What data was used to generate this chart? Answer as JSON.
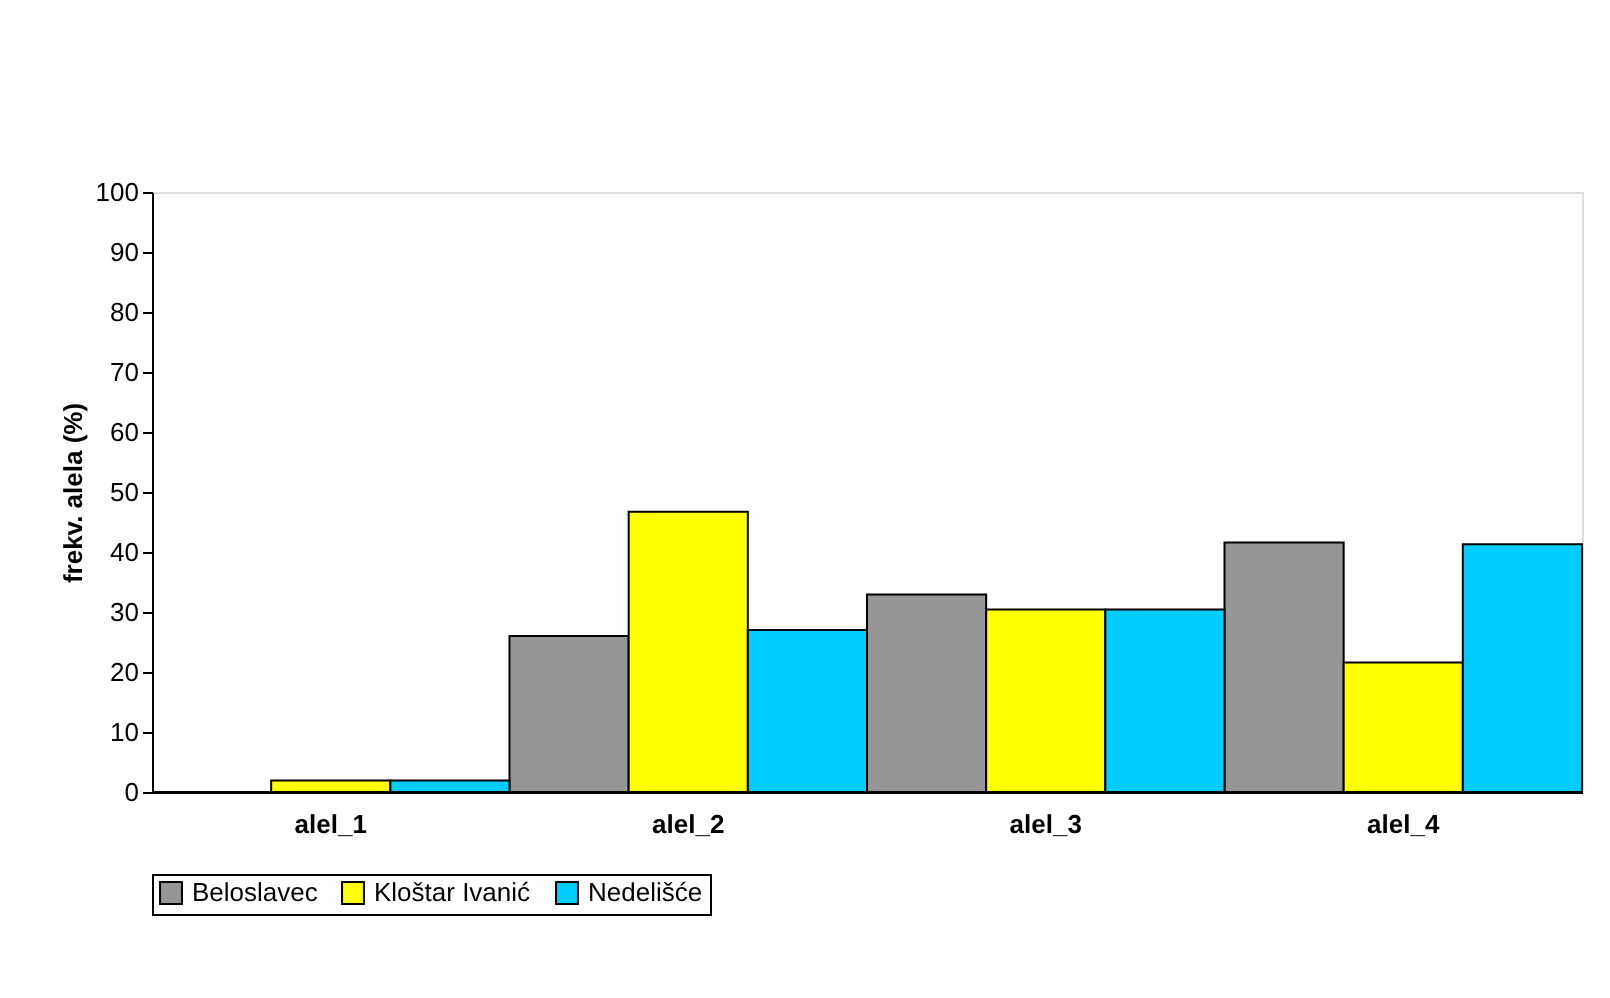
{
  "chart_data": {
    "type": "bar",
    "ylabel": "frekv. alela (%)",
    "categories": [
      "alel_1",
      "alel_2",
      "alel_3",
      "alel_4"
    ],
    "series": [
      {
        "name": "Beloslavec",
        "color": "#969696",
        "values": [
          0,
          26.0,
          32.9,
          41.6
        ]
      },
      {
        "name": "Kloštar Ivanić",
        "color": "#ffff00",
        "values": [
          1.9,
          46.7,
          30.4,
          21.6
        ]
      },
      {
        "name": "Nedelišće",
        "color": "#00ccff",
        "values": [
          1.9,
          27.0,
          30.4,
          41.3
        ]
      }
    ],
    "ylim": [
      0,
      100
    ],
    "yticks": [
      0,
      10,
      20,
      30,
      40,
      50,
      60,
      70,
      80,
      90,
      100
    ],
    "grid": false,
    "legend": "bottom"
  }
}
